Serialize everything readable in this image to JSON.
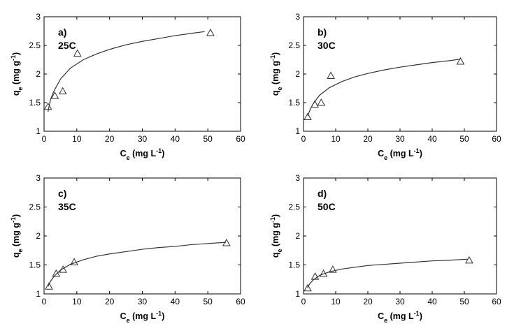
{
  "chart_data": [
    {
      "type": "scatter",
      "panel_label": "a)",
      "temperature_label": "25C",
      "xlabel": {
        "main": "C",
        "sub": "e",
        "unit": " (mg L",
        "sup": "-1",
        "close": ")"
      },
      "ylabel": {
        "main": "q",
        "sub": "e",
        "unit": " (mg g",
        "sup": "-1",
        "close": ")"
      },
      "xlim": [
        0,
        60
      ],
      "ylim": [
        1,
        3
      ],
      "xticks": [
        "0",
        "10",
        "20",
        "30",
        "40",
        "50",
        "60"
      ],
      "yticks": [
        "1",
        "1.5",
        "2",
        "2.5",
        "3"
      ],
      "grid": false,
      "series": [
        {
          "kind": "points",
          "marker": "triangle",
          "x": [
            1.2,
            3.3,
            5.7,
            10.2,
            50.8
          ],
          "y": [
            1.43,
            1.62,
            1.7,
            2.36,
            2.72
          ]
        },
        {
          "kind": "fit-line",
          "x": [
            1.2,
            2,
            3,
            5,
            8,
            12,
            16,
            20,
            25,
            30,
            35,
            40,
            45,
            49
          ],
          "y": [
            1.34,
            1.56,
            1.7,
            1.91,
            2.1,
            2.25,
            2.35,
            2.43,
            2.51,
            2.57,
            2.62,
            2.67,
            2.71,
            2.74
          ]
        }
      ]
    },
    {
      "type": "scatter",
      "panel_label": "b)",
      "temperature_label": "30C",
      "xlabel": {
        "main": "C",
        "sub": "e",
        "unit": " (mg L",
        "sup": "-1",
        "close": ")"
      },
      "ylabel": {
        "main": "q",
        "sub": "e",
        "unit": " (mg g",
        "sup": "-1",
        "close": ")"
      },
      "xlim": [
        0,
        60
      ],
      "ylim": [
        1,
        3
      ],
      "xticks": [
        "0",
        "10",
        "20",
        "30",
        "40",
        "50",
        "60"
      ],
      "yticks": [
        "1",
        "1.5",
        "2",
        "2.5",
        "3"
      ],
      "grid": false,
      "series": [
        {
          "kind": "points",
          "marker": "triangle",
          "x": [
            1.3,
            3.5,
            5.5,
            8.5,
            48.8
          ],
          "y": [
            1.25,
            1.47,
            1.5,
            1.97,
            2.22
          ]
        },
        {
          "kind": "fit-line",
          "x": [
            1.3,
            2,
            3,
            5,
            8,
            12,
            16,
            20,
            25,
            30,
            35,
            40,
            45,
            48.8
          ],
          "y": [
            1.27,
            1.37,
            1.48,
            1.63,
            1.76,
            1.87,
            1.95,
            2.01,
            2.07,
            2.12,
            2.16,
            2.2,
            2.23,
            2.26
          ]
        }
      ]
    },
    {
      "type": "scatter",
      "panel_label": "c)",
      "temperature_label": "35C",
      "xlabel": {
        "main": "C",
        "sub": "e",
        "unit": " (mg L",
        "sup": "-1",
        "close": ")"
      },
      "ylabel": {
        "main": "q",
        "sub": "e",
        "unit": " (mg g",
        "sup": "-1",
        "close": ")"
      },
      "xlim": [
        0,
        60
      ],
      "ylim": [
        1,
        3
      ],
      "xticks": [
        "0",
        "10",
        "20",
        "30",
        "40",
        "50",
        "60"
      ],
      "yticks": [
        "1",
        "1.5",
        "2",
        "2.5",
        "3"
      ],
      "grid": false,
      "series": [
        {
          "kind": "points",
          "marker": "triangle",
          "x": [
            1.5,
            3.7,
            5.8,
            9.2,
            55.7
          ],
          "y": [
            1.13,
            1.35,
            1.42,
            1.55,
            1.88
          ]
        },
        {
          "kind": "fit-line",
          "x": [
            1.2,
            2,
            3,
            5,
            8,
            12,
            16,
            20,
            25,
            30,
            35,
            40,
            45,
            50,
            55.5
          ],
          "y": [
            1.13,
            1.22,
            1.3,
            1.41,
            1.51,
            1.59,
            1.65,
            1.69,
            1.73,
            1.77,
            1.8,
            1.82,
            1.85,
            1.87,
            1.89
          ]
        }
      ]
    },
    {
      "type": "scatter",
      "panel_label": "d)",
      "temperature_label": "50C",
      "xlabel": {
        "main": "C",
        "sub": "e",
        "unit": " (mg L",
        "sup": "-1",
        "close": ")"
      },
      "ylabel": {
        "main": "q",
        "sub": "e",
        "unit": " (mg g",
        "sup": "-1",
        "close": ")"
      },
      "xlim": [
        0,
        60
      ],
      "ylim": [
        1,
        3
      ],
      "xticks": [
        "0",
        "10",
        "20",
        "30",
        "40",
        "50",
        "60"
      ],
      "yticks": [
        "1",
        "1.5",
        "2",
        "2.5",
        "3"
      ],
      "grid": false,
      "series": [
        {
          "kind": "points",
          "marker": "triangle",
          "x": [
            1.3,
            3.6,
            6.2,
            9.1,
            51.5
          ],
          "y": [
            1.1,
            1.3,
            1.35,
            1.42,
            1.58
          ]
        },
        {
          "kind": "fit-line",
          "x": [
            1.2,
            2,
            3,
            5,
            8,
            12,
            16,
            20,
            25,
            30,
            35,
            40,
            45,
            51
          ],
          "y": [
            1.11,
            1.18,
            1.24,
            1.32,
            1.38,
            1.43,
            1.46,
            1.49,
            1.51,
            1.53,
            1.55,
            1.57,
            1.58,
            1.6
          ]
        }
      ]
    }
  ]
}
